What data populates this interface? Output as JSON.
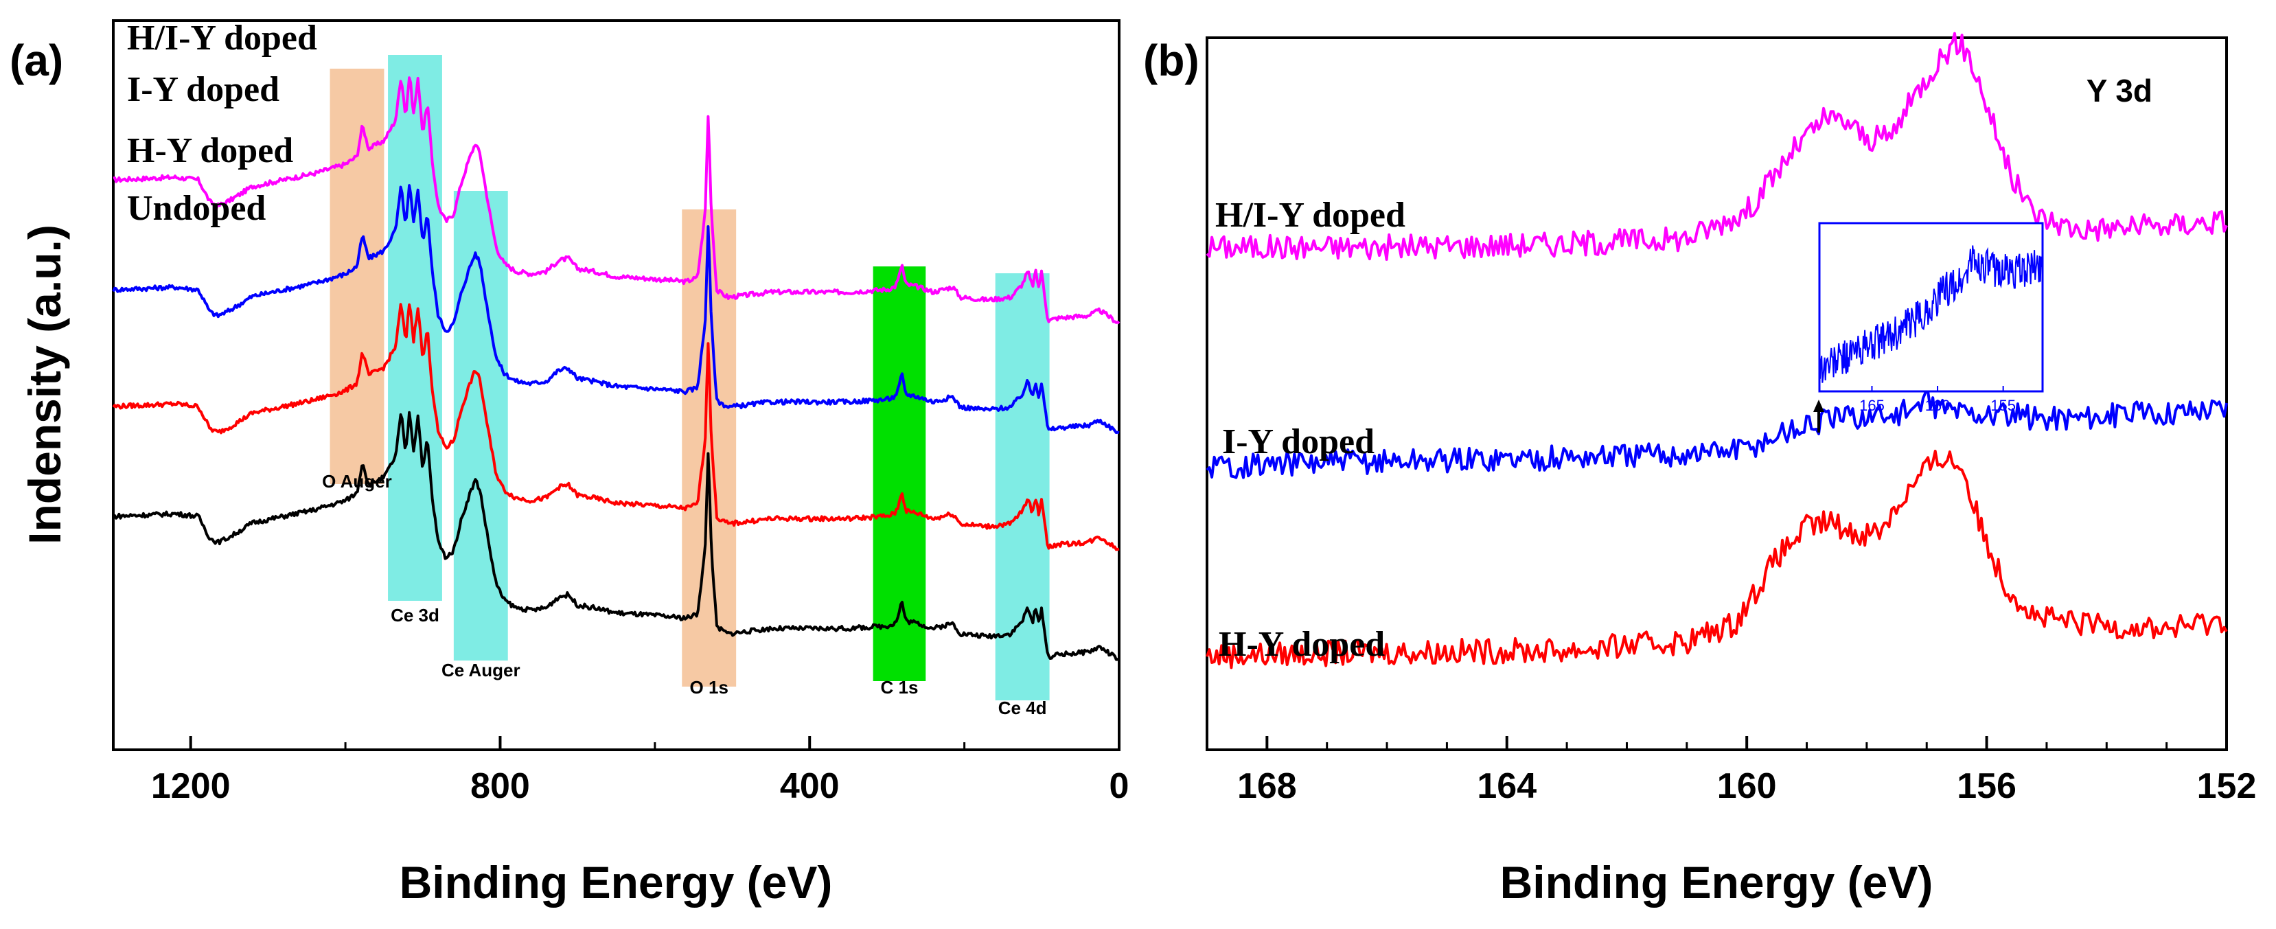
{
  "chart_data": [
    {
      "type": "line",
      "panel": "(a)",
      "xlabel": "Binding Energy (eV)",
      "ylabel": "Indensity (a.u.)",
      "xlim": [
        1300,
        0
      ],
      "x_reversed": true,
      "xticks": [
        1200,
        800,
        400,
        0
      ],
      "yticks_shown": false,
      "regions": [
        {
          "label": "O Auger",
          "x0": 1020,
          "x1": 950,
          "color": "#f6c9a4"
        },
        {
          "label": "Ce 3d",
          "x0": 945,
          "x1": 875,
          "color": "#7fece4"
        },
        {
          "label": "Ce Auger",
          "x0": 860,
          "x1": 790,
          "color": "#7fece4"
        },
        {
          "label": "O 1s",
          "x0": 565,
          "x1": 495,
          "color": "#f6c9a4"
        },
        {
          "label": "C 1s",
          "x0": 318,
          "x1": 250,
          "color": "#00e000"
        },
        {
          "label": "Ce 4d",
          "x0": 160,
          "x1": 90,
          "color": "#7fece4"
        }
      ],
      "series": [
        {
          "name": "H/I-Y doped",
          "color": "#ff00ff",
          "offset": 3
        },
        {
          "name": "I-Y doped",
          "color": "#0000ff",
          "offset": 2
        },
        {
          "name": "H-Y doped",
          "color": "#ff0000",
          "offset": 1
        },
        {
          "name": "Undoped",
          "color": "#000000",
          "offset": 0
        }
      ],
      "profile_x": [
        1300,
        1260,
        1220,
        1190,
        1175,
        1165,
        1150,
        1120,
        1080,
        1040,
        1000,
        985,
        978,
        970,
        950,
        935,
        928,
        922,
        917,
        912,
        906,
        900,
        894,
        888,
        880,
        870,
        860,
        850,
        840,
        832,
        826,
        820,
        812,
        805,
        795,
        780,
        760,
        740,
        725,
        712,
        700,
        680,
        650,
        600,
        560,
        545,
        535,
        531,
        527,
        520,
        505,
        450,
        400,
        350,
        300,
        290,
        285,
        281,
        276,
        260,
        240,
        215,
        205,
        170,
        140,
        125,
        118,
        112,
        108,
        104,
        100,
        96,
        92,
        80,
        40,
        25,
        20,
        10,
        0
      ],
      "profile_y": [
        0.2,
        0.21,
        0.22,
        0.2,
        0.03,
        0.0,
        0.04,
        0.15,
        0.2,
        0.25,
        0.32,
        0.38,
        0.62,
        0.44,
        0.5,
        0.66,
        1.0,
        0.68,
        1.02,
        0.7,
        0.98,
        0.55,
        0.8,
        0.35,
        0.0,
        -0.12,
        -0.06,
        0.18,
        0.36,
        0.48,
        0.4,
        0.18,
        -0.1,
        -0.32,
        -0.44,
        -0.5,
        -0.52,
        -0.5,
        -0.42,
        -0.4,
        -0.48,
        -0.5,
        -0.54,
        -0.56,
        -0.58,
        -0.55,
        -0.05,
        0.72,
        -0.05,
        -0.65,
        -0.7,
        -0.66,
        -0.66,
        -0.66,
        -0.64,
        -0.62,
        -0.56,
        -0.44,
        -0.6,
        -0.62,
        -0.66,
        -0.62,
        -0.7,
        -0.72,
        -0.7,
        -0.6,
        -0.5,
        -0.62,
        -0.5,
        -0.62,
        -0.5,
        -0.7,
        -0.88,
        -0.86,
        -0.84,
        -0.8,
        -0.82,
        -0.86,
        -0.9
      ]
    },
    {
      "type": "line",
      "panel": "(b)",
      "title": "Y 3d",
      "xlabel": "Binding Energy (eV)",
      "xlim": [
        169,
        152
      ],
      "x_reversed": true,
      "xticks": [
        168,
        164,
        160,
        156,
        152
      ],
      "yticks_shown": false,
      "series": [
        {
          "name": "H/I-Y doped",
          "color": "#ff00ff",
          "offset": 2,
          "x": [
            169,
            166,
            163,
            161,
            160,
            159.2,
            158.7,
            158.3,
            158.0,
            157.6,
            157.2,
            156.8,
            156.5,
            156.3,
            156.0,
            155.6,
            155.2,
            154.5,
            153,
            152
          ],
          "y": [
            0.0,
            0.0,
            0.02,
            0.05,
            0.2,
            0.55,
            0.72,
            0.7,
            0.6,
            0.62,
            0.85,
            1.05,
            1.15,
            1.08,
            0.8,
            0.4,
            0.18,
            0.1,
            0.12,
            0.15
          ]
        },
        {
          "name": "I-Y doped",
          "color": "#0000ff",
          "offset": 1,
          "x": [
            169,
            166,
            163,
            161,
            160,
            159.3,
            158.5,
            157.5,
            157.0,
            156.5,
            156.0,
            155,
            153.5,
            152
          ],
          "y": [
            -0.15,
            -0.12,
            -0.1,
            -0.08,
            -0.05,
            0.05,
            0.12,
            0.14,
            0.2,
            0.16,
            0.14,
            0.12,
            0.14,
            0.18
          ]
        },
        {
          "name": "H-Y doped",
          "color": "#ff0000",
          "offset": 0,
          "x": [
            169,
            166,
            163,
            161,
            160.2,
            159.5,
            159.0,
            158.6,
            158.2,
            157.8,
            157.4,
            157.0,
            156.7,
            156.4,
            156.1,
            155.7,
            155.2,
            154.5,
            153,
            152
          ],
          "y": [
            0.0,
            0.02,
            0.03,
            0.08,
            0.18,
            0.55,
            0.72,
            0.75,
            0.68,
            0.7,
            0.88,
            1.05,
            1.12,
            1.05,
            0.72,
            0.4,
            0.22,
            0.18,
            0.15,
            0.2
          ]
        }
      ],
      "inset": {
        "xlim": [
          169,
          152
        ],
        "xticks": [
          165,
          160,
          155
        ],
        "color": "#0000ff",
        "points": [
          [
            169,
            0.05
          ],
          [
            166,
            0.2
          ],
          [
            163,
            0.35
          ],
          [
            161,
            0.5
          ],
          [
            159.5,
            0.7
          ],
          [
            158,
            0.78
          ],
          [
            157.5,
            0.95
          ],
          [
            156,
            0.88
          ],
          [
            154,
            0.85
          ],
          [
            152,
            0.9
          ]
        ]
      },
      "annotation_arrow": {
        "x_ev": 158.8
      }
    }
  ]
}
